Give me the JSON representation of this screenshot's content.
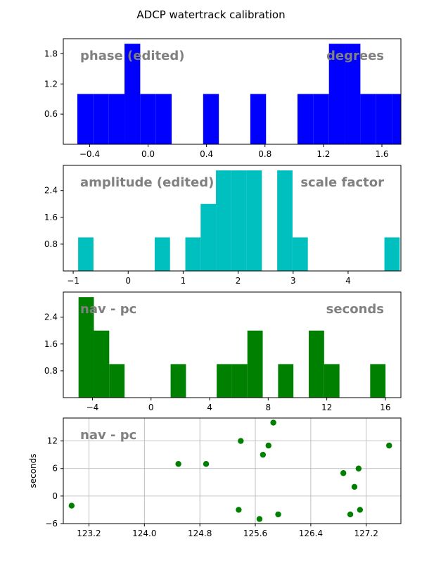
{
  "figure": {
    "title": "ADCP watertrack calibration"
  },
  "chart_data": [
    {
      "type": "bar",
      "name": "phase-hist",
      "label_left": "phase (edited)",
      "label_right": "degrees",
      "color": "#0000ff",
      "bin_width": 0.1076,
      "bin_start": -0.484,
      "counts": [
        1,
        1,
        1,
        2,
        1,
        1,
        0,
        0,
        1,
        0,
        0,
        1,
        0,
        0,
        1,
        1,
        2,
        2,
        1,
        1,
        1,
        1,
        0,
        0,
        0,
        0,
        0,
        1,
        0,
        0,
        1
      ],
      "xlim": [
        -0.58,
        1.73
      ],
      "ylim": [
        0,
        2.1
      ],
      "xticks": [
        -0.4,
        0.0,
        0.4,
        0.8,
        1.2,
        1.6
      ],
      "xtick_labels": [
        "−0.4",
        "0.0",
        "0.4",
        "0.8",
        "1.2",
        "1.6"
      ],
      "yticks": [
        0.6,
        1.2,
        1.8
      ],
      "ytick_labels": [
        "0.6",
        "1.2",
        "1.8"
      ],
      "grid": false
    },
    {
      "type": "bar",
      "name": "amplitude-hist",
      "label_left": "amplitude (edited)",
      "label_right": "scale factor",
      "color": "#00bfbf",
      "bin_width": 0.2785,
      "bin_start": -0.91,
      "counts": [
        1,
        0,
        0,
        0,
        0,
        1,
        0,
        1,
        2,
        3,
        3,
        3,
        0,
        3,
        1,
        0,
        0,
        0,
        0,
        0,
        1
      ],
      "xlim": [
        -1.18,
        4.96
      ],
      "ylim": [
        0,
        3.15
      ],
      "xticks": [
        -1,
        0,
        1,
        2,
        3,
        4
      ],
      "xtick_labels": [
        "−1",
        "0",
        "1",
        "2",
        "3",
        "4"
      ],
      "yticks": [
        0.8,
        1.6,
        2.4
      ],
      "ytick_labels": [
        "0.8",
        "1.6",
        "2.4"
      ],
      "grid": false
    },
    {
      "type": "bar",
      "name": "navpc-hist",
      "label_left": "nav - pc",
      "label_right": "seconds",
      "color": "#008000",
      "bin_width": 1.048,
      "bin_start": -4.95,
      "counts": [
        3,
        2,
        1,
        0,
        0,
        0,
        1,
        0,
        0,
        1,
        1,
        2,
        0,
        1,
        0,
        2,
        1,
        0,
        0,
        1
      ],
      "xlim": [
        -5.99,
        17.06
      ],
      "ylim": [
        0,
        3.15
      ],
      "xticks": [
        -4,
        0,
        4,
        8,
        12,
        16
      ],
      "xtick_labels": [
        "−4",
        "0",
        "4",
        "8",
        "12",
        "16"
      ],
      "yticks": [
        0.8,
        1.6,
        2.4
      ],
      "ytick_labels": [
        "0.8",
        "1.6",
        "2.4"
      ],
      "grid": false
    },
    {
      "type": "scatter",
      "name": "navpc-scatter",
      "label_left": "nav - pc",
      "ylabel": "seconds",
      "color": "#008000",
      "x": [
        122.95,
        124.49,
        124.89,
        125.36,
        125.39,
        125.66,
        125.71,
        125.79,
        125.86,
        125.93,
        126.87,
        126.97,
        127.03,
        127.09,
        127.11,
        127.53
      ],
      "y": [
        -2.1,
        7.0,
        7.0,
        -3.0,
        12.0,
        -5.0,
        9.0,
        11.0,
        16.0,
        -4.0,
        5.0,
        -4.0,
        2.0,
        6.0,
        -3.0,
        11.0
      ],
      "xlim": [
        122.83,
        127.7
      ],
      "ylim": [
        -6,
        17
      ],
      "xticks": [
        123.2,
        124.0,
        124.8,
        125.6,
        126.4,
        127.2
      ],
      "xtick_labels": [
        "123.2",
        "124.0",
        "124.8",
        "125.6",
        "126.4",
        "127.2"
      ],
      "yticks": [
        -6,
        0,
        6,
        12
      ],
      "ytick_labels": [
        "−6",
        "0",
        "6",
        "12"
      ],
      "grid": true
    }
  ]
}
